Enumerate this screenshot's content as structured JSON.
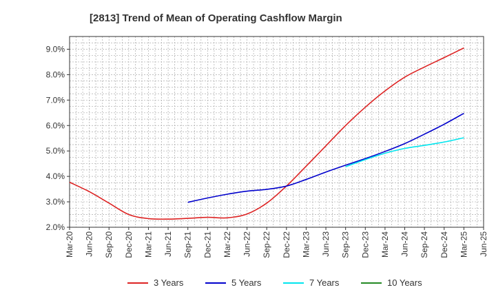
{
  "chart_data": {
    "type": "line",
    "title": "[2813]  Trend of Mean of Operating Cashflow Margin",
    "xlabel": "",
    "ylabel": "",
    "x_ticks": [
      "Mar-20",
      "Jun-20",
      "Sep-20",
      "Dec-20",
      "Mar-21",
      "Jun-21",
      "Sep-21",
      "Dec-21",
      "Mar-22",
      "Jun-22",
      "Sep-22",
      "Dec-22",
      "Mar-23",
      "Jun-23",
      "Sep-23",
      "Dec-23",
      "Mar-24",
      "Jun-24",
      "Sep-24",
      "Dec-24",
      "Mar-25",
      "Jun-25"
    ],
    "y_ticks": [
      "2.0%",
      "3.0%",
      "4.0%",
      "5.0%",
      "6.0%",
      "7.0%",
      "8.0%",
      "9.0%"
    ],
    "ylim": [
      2.0,
      9.5
    ],
    "grid": true,
    "legend_position": "bottom",
    "series": [
      {
        "name": "3 Years",
        "color": "#dd2222",
        "x": [
          "Mar-20",
          "Jun-20",
          "Sep-20",
          "Dec-20",
          "Mar-21",
          "Jun-21",
          "Sep-21",
          "Dec-21",
          "Mar-22",
          "Jun-22",
          "Sep-22",
          "Dec-22",
          "Mar-23",
          "Jun-23",
          "Sep-23",
          "Dec-23",
          "Mar-24",
          "Jun-24",
          "Sep-24",
          "Dec-24",
          "Mar-25"
        ],
        "values": [
          3.77,
          3.4,
          2.95,
          2.5,
          2.34,
          2.32,
          2.35,
          2.39,
          2.37,
          2.52,
          2.95,
          3.62,
          4.4,
          5.2,
          6.0,
          6.72,
          7.36,
          7.9,
          8.3,
          8.67,
          9.05
        ]
      },
      {
        "name": "5 Years",
        "color": "#0000cc",
        "x": [
          "Sep-21",
          "Dec-21",
          "Mar-22",
          "Jun-22",
          "Sep-22",
          "Dec-22",
          "Mar-23",
          "Jun-23",
          "Sep-23",
          "Dec-23",
          "Mar-24",
          "Jun-24",
          "Sep-24",
          "Dec-24",
          "Mar-25"
        ],
        "values": [
          2.98,
          3.15,
          3.3,
          3.42,
          3.49,
          3.62,
          3.88,
          4.17,
          4.44,
          4.7,
          4.98,
          5.29,
          5.66,
          6.05,
          6.48
        ]
      },
      {
        "name": "7 Years",
        "color": "#00e5ee",
        "x": [
          "Sep-23",
          "Dec-23",
          "Mar-24",
          "Jun-24",
          "Sep-24",
          "Dec-24",
          "Mar-25"
        ],
        "values": [
          4.38,
          4.66,
          4.91,
          5.1,
          5.22,
          5.35,
          5.52
        ]
      },
      {
        "name": "10 Years",
        "color": "#228822",
        "x": [],
        "values": []
      }
    ]
  }
}
